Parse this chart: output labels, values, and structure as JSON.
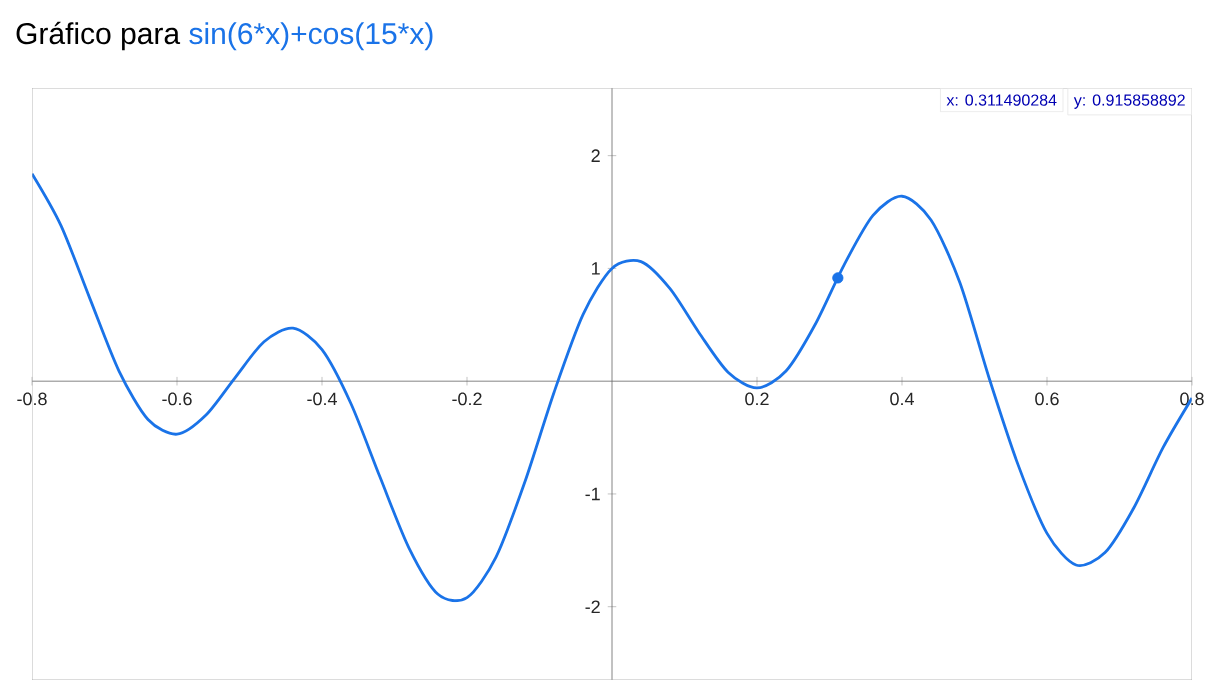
{
  "chart_data": {
    "type": "line",
    "title": "Gráfico para",
    "subtitle": "sin(6*x)+cos(15*x)",
    "xlim": [
      -0.8,
      0.8
    ],
    "ylim": [
      -2.65,
      2.6
    ],
    "xticks": [
      -0.8,
      -0.6,
      -0.4,
      -0.2,
      0.2,
      0.4,
      0.6,
      0.8
    ],
    "yticks": [
      -2,
      -1,
      1,
      2
    ],
    "grid": false,
    "annotations": [
      "x: 0.311490284",
      "y: 0.915858892"
    ],
    "series": [
      {
        "color": "#1a73e8",
        "marker": "none",
        "line_style": "solid",
        "x": [
          -0.8,
          -0.76,
          -0.72,
          -0.68,
          -0.64,
          -0.6,
          -0.56,
          -0.52,
          -0.48,
          -0.44,
          -0.4,
          -0.36,
          -0.32,
          -0.28,
          -0.24,
          -0.2,
          -0.16,
          -0.12,
          -0.08,
          -0.04,
          0,
          0.04,
          0.08,
          0.12,
          0.16,
          0.2,
          0.24,
          0.28,
          0.32,
          0.36,
          0.4,
          0.44,
          0.48,
          0.52,
          0.56,
          0.6,
          0.64,
          0.68,
          0.72,
          0.76,
          0.8
        ],
        "values": [
          1.84,
          1.38,
          0.73,
          0.09,
          -0.34,
          -0.47,
          -0.3,
          0.03,
          0.35,
          0.47,
          0.28,
          -0.2,
          -0.85,
          -1.48,
          -1.89,
          -1.92,
          -1.56,
          -0.89,
          -0.1,
          0.59,
          1.0,
          1.06,
          0.82,
          0.43,
          0.08,
          -0.06,
          0.09,
          0.5,
          1.03,
          1.47,
          1.64,
          1.43,
          0.87,
          0.03,
          -0.74,
          -1.35,
          -1.63,
          -1.52,
          -1.12,
          -0.59,
          -0.15
        ]
      },
      {
        "type": "scatter",
        "color": "#1a73e8",
        "marker": "circle",
        "x": [
          0.311490284
        ],
        "values": [
          0.915858892
        ]
      }
    ]
  }
}
